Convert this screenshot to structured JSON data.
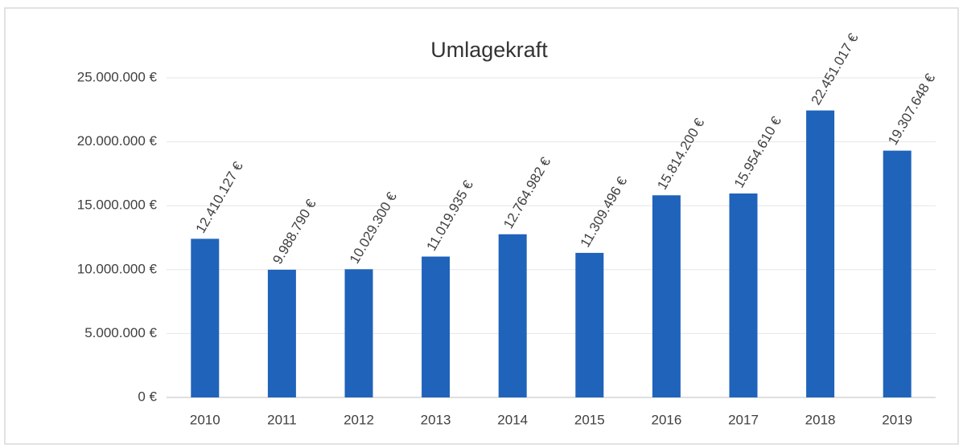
{
  "chart_data": {
    "type": "bar",
    "title": "Umlagekraft",
    "categories": [
      "2010",
      "2011",
      "2012",
      "2013",
      "2014",
      "2015",
      "2016",
      "2017",
      "2018",
      "2019"
    ],
    "values": [
      12410127,
      9988790,
      10029300,
      11019935,
      12764982,
      11309496,
      15814200,
      15954610,
      22451017,
      19307648
    ],
    "value_labels": [
      "12.410.127 €",
      "9.988.790 €",
      "10.029.300 €",
      "11.019.935 €",
      "12.764.982 €",
      "11.309.496 €",
      "15.814.200 €",
      "15.954.610 €",
      "22.451.017 €",
      "19.307.648 €"
    ],
    "color": "#1f63bb",
    "ylim": [
      0,
      25000000
    ],
    "yticks": [
      {
        "value": 0,
        "label": "0 €"
      },
      {
        "value": 5000000,
        "label": "5.000.000 €"
      },
      {
        "value": 10000000,
        "label": "10.000.000 €"
      },
      {
        "value": 15000000,
        "label": "15.000.000 €"
      },
      {
        "value": 20000000,
        "label": "20.000.000 €"
      },
      {
        "value": 25000000,
        "label": "25.000.000 €"
      }
    ],
    "grid": true
  }
}
